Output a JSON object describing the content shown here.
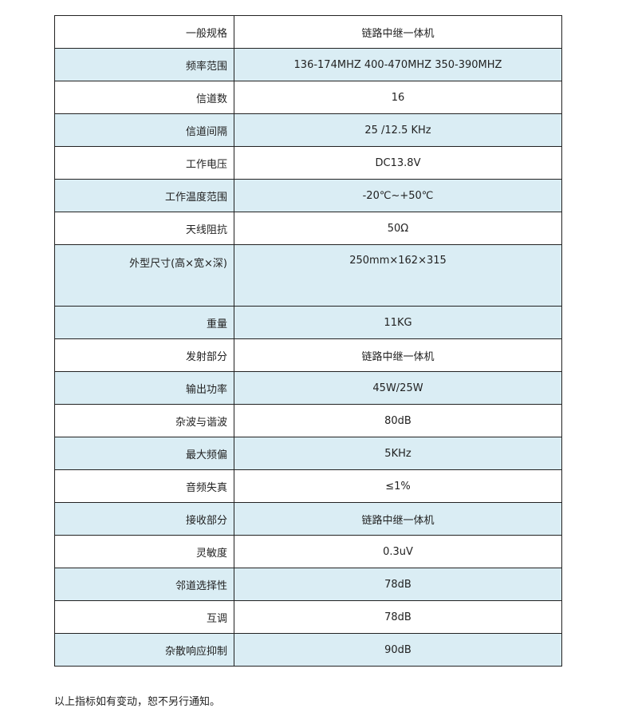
{
  "rows": [
    {
      "label": "一般规格",
      "value": "链路中继一体机"
    },
    {
      "label": "频率范围",
      "value": "136-174MHZ 400-470MHZ 350-390MHZ"
    },
    {
      "label": "信道数",
      "value": "16"
    },
    {
      "label": "信道间隔",
      "value": "25 /12.5 KHz"
    },
    {
      "label": "工作电压",
      "value": "DC13.8V"
    },
    {
      "label": "工作温度范围",
      "value": "-20℃~+50℃"
    },
    {
      "label": "天线阻抗",
      "value": "50Ω"
    },
    {
      "label": "外型尺寸(高×宽×深)",
      "value": "250mm×162×315"
    },
    {
      "label": "重量",
      "value": "11KG"
    },
    {
      "label": "发射部分",
      "value": "链路中继一体机"
    },
    {
      "label": "输出功率",
      "value": "45W/25W"
    },
    {
      "label": "杂波与谐波",
      "value": "80dB"
    },
    {
      "label": "最大频偏",
      "value": "5KHz"
    },
    {
      "label": "音频失真",
      "value": "≤1%"
    },
    {
      "label": "接收部分",
      "value": "链路中继一体机"
    },
    {
      "label": "灵敏度",
      "value": "0.3uV"
    },
    {
      "label": "邻道选择性",
      "value": "78dB"
    },
    {
      "label": "互调",
      "value": "78dB"
    },
    {
      "label": "杂散响应抑制",
      "value": "90dB"
    }
  ],
  "note": "以上指标如有变动，恕不另行通知。",
  "colors": {
    "row_alt": "#daedf4",
    "border": "#222222"
  }
}
